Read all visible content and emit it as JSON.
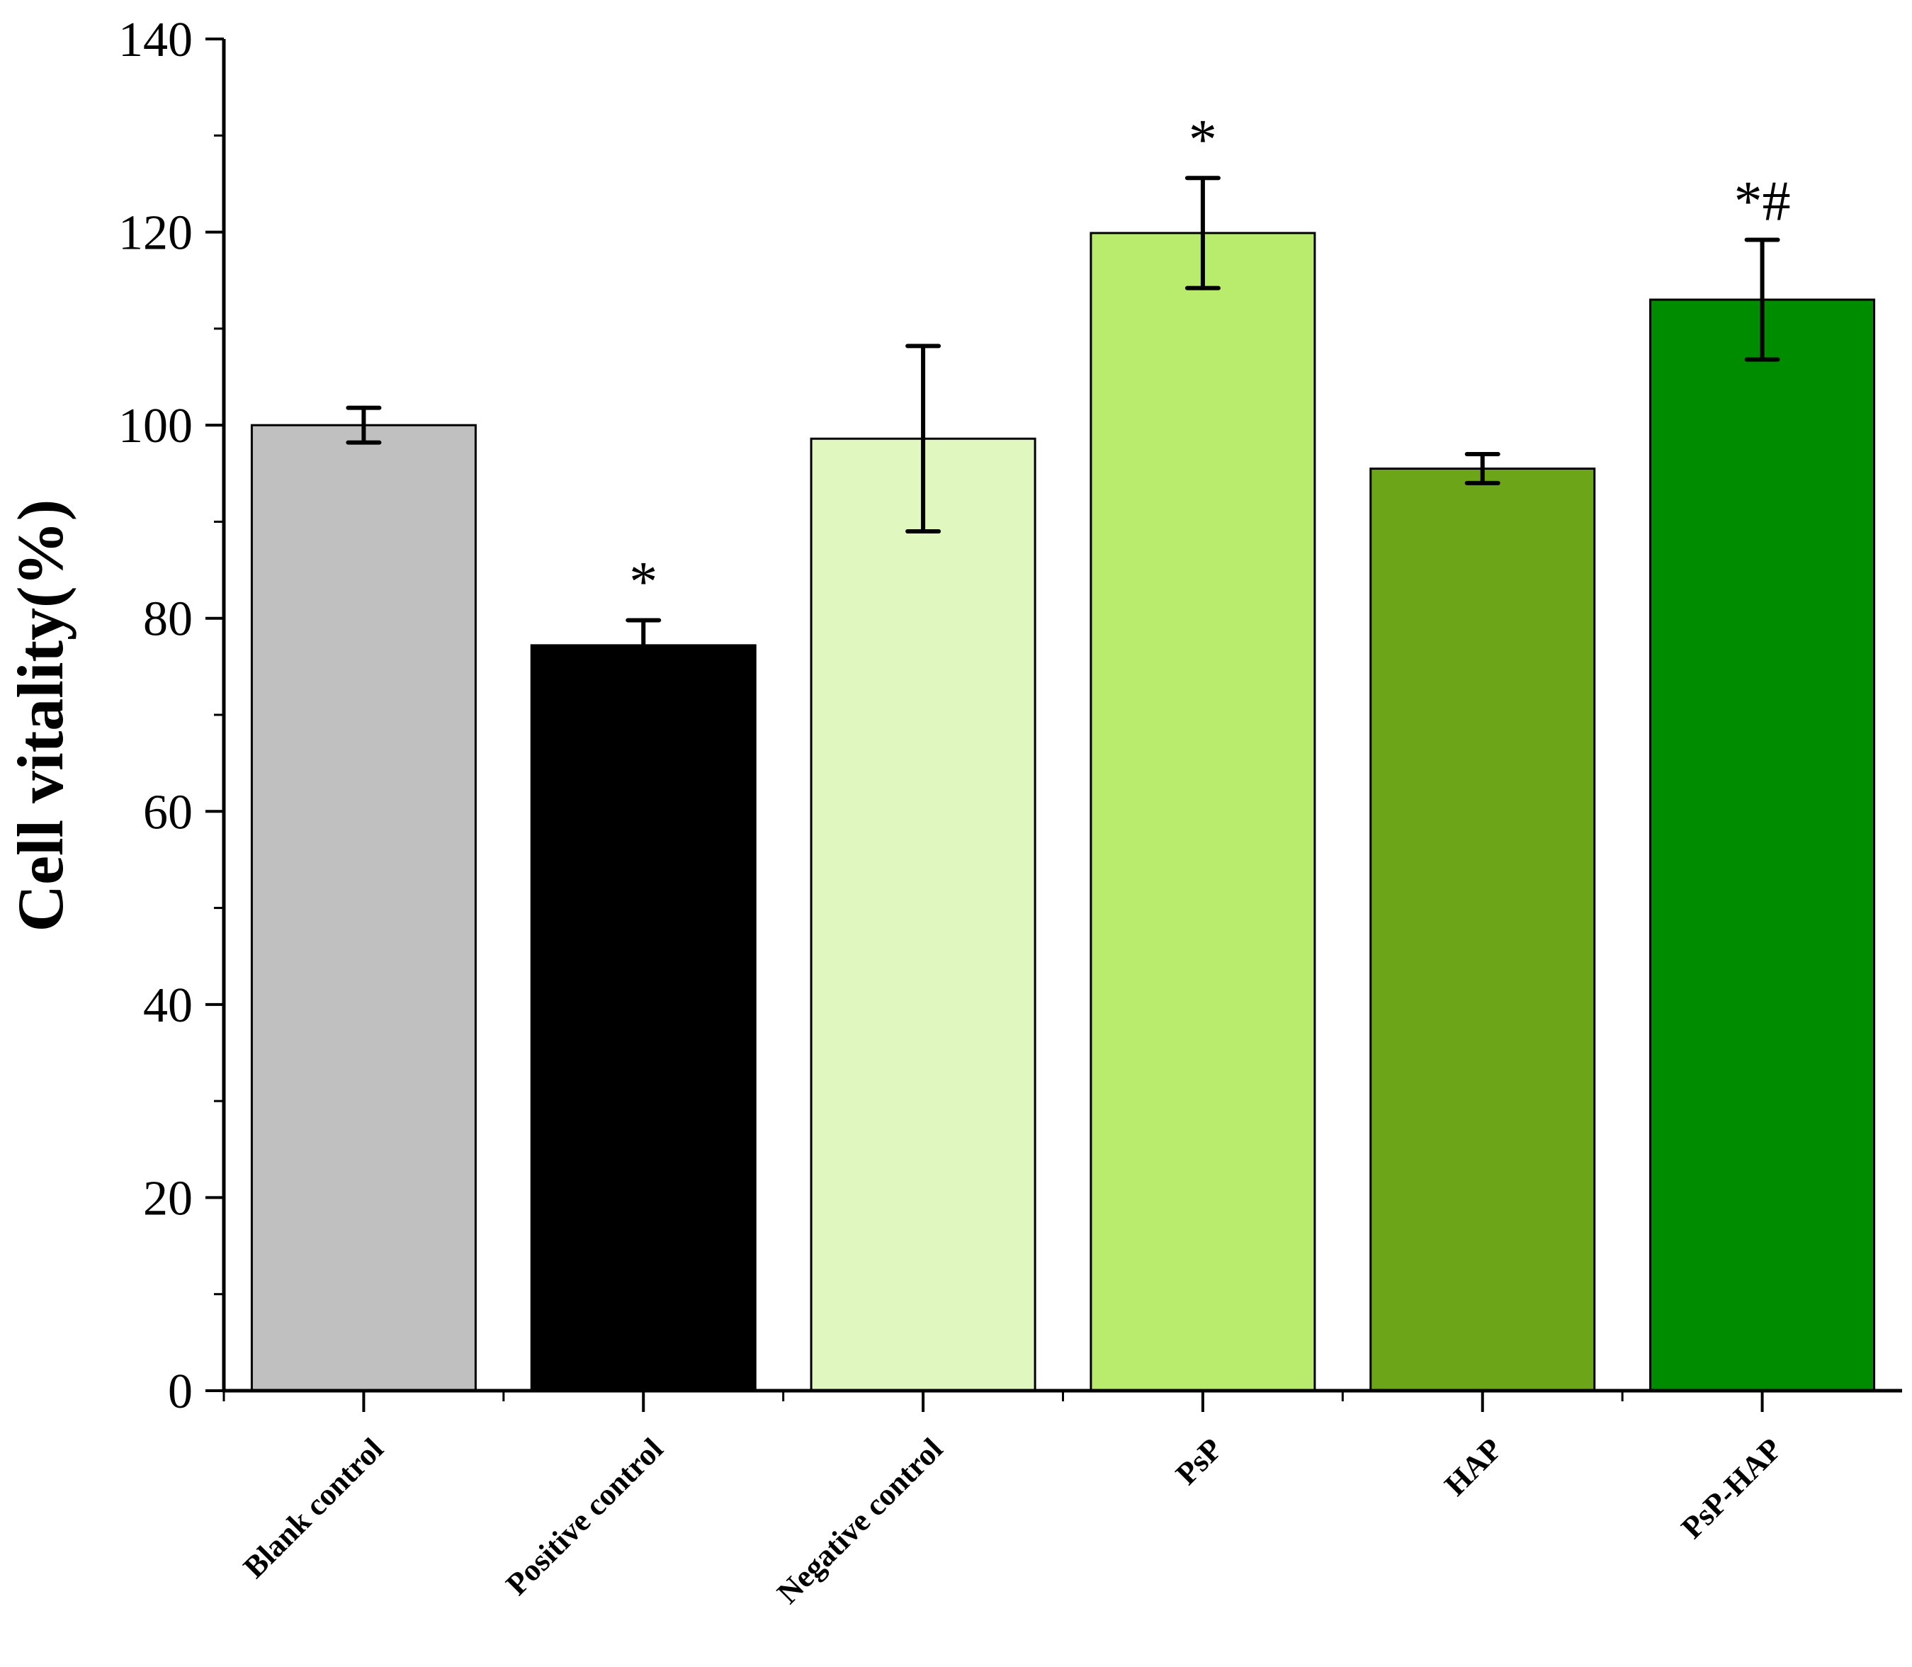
{
  "chart_data": {
    "type": "bar",
    "title": "",
    "xlabel": "",
    "ylabel": "Cell vitality(%)",
    "ylim": [
      0,
      140
    ],
    "yticks": [
      "0",
      "20",
      "40",
      "60",
      "80",
      "100",
      "120",
      "140"
    ],
    "grid": false,
    "categories": [
      "Blank control",
      "Positive control",
      "Negative control",
      "PsP",
      "HAP",
      "PsP-HAP"
    ],
    "values": [
      100,
      77.2,
      98.6,
      119.9,
      95.5,
      113.0
    ],
    "errors": [
      1.8,
      2.6,
      9.6,
      5.7,
      1.5,
      6.2
    ],
    "colors": [
      "#c0c0c0",
      "#000000",
      "#e0f7c0",
      "#b9eb6c",
      "#6ca518",
      "#008c00"
    ],
    "annotations": [
      "",
      "*",
      "",
      "*",
      "",
      "*#"
    ]
  }
}
